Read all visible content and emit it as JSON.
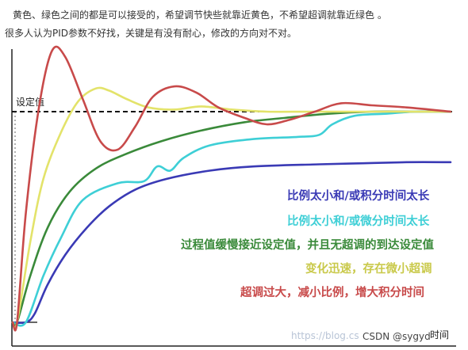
{
  "intro": {
    "line1": "黄色、绿色之间的都是可以接受的，希望调节快些就靠近黄色，不希望超调就靠近绿色 。",
    "line2": "很多人认为PID参数不好找，关键是有没有耐心，修改的方向对不对。"
  },
  "watermark": {
    "url": "https://blog.cs",
    "credit": "CSDN @sygyd"
  },
  "chart_data": {
    "type": "line",
    "setpoint_label": "设定值",
    "xlabel": "时间",
    "ylabel": "",
    "setpoint": 1.0,
    "x_unit": "fraction of time span",
    "series": [
      {
        "name": "比例太小和/或积分时间太长",
        "color": "#3a3ab5",
        "x": [
          0,
          0.03,
          0.05,
          0.08,
          0.12,
          0.17,
          0.22,
          0.28,
          0.35,
          0.45,
          0.55,
          0.7,
          0.8,
          0.9,
          1.0
        ],
        "y": [
          0,
          0,
          0.04,
          0.18,
          0.32,
          0.45,
          0.55,
          0.63,
          0.68,
          0.72,
          0.74,
          0.75,
          0.755,
          0.76,
          0.76
        ]
      },
      {
        "name": "比例太小和/或微分时间太长",
        "color": "#3ecfd6",
        "x": [
          0,
          0.03,
          0.07,
          0.11,
          0.16,
          0.24,
          0.3,
          0.33,
          0.36,
          0.39,
          0.45,
          0.55,
          0.65,
          0.7,
          0.73,
          0.78,
          0.85,
          0.92,
          1.0
        ],
        "y": [
          0,
          0,
          0.22,
          0.4,
          0.58,
          0.66,
          0.67,
          0.74,
          0.72,
          0.78,
          0.84,
          0.87,
          0.88,
          0.89,
          0.94,
          0.98,
          0.99,
          1.0,
          1.0
        ]
      },
      {
        "name": "过程值缓慢接近设定值，并且无超调的到达设定值",
        "color": "#3a8a3a",
        "x": [
          0,
          0.01,
          0.04,
          0.08,
          0.13,
          0.19,
          0.26,
          0.34,
          0.43,
          0.53,
          0.62,
          0.72,
          0.82,
          0.92,
          1.0
        ],
        "y": [
          0,
          0,
          0.22,
          0.45,
          0.62,
          0.73,
          0.8,
          0.86,
          0.91,
          0.95,
          0.97,
          0.99,
          1.0,
          1.0,
          1.0
        ]
      },
      {
        "name": "变化迅速，存在微小超调",
        "color": "#e3e36a",
        "x": [
          0,
          0.01,
          0.04,
          0.07,
          0.11,
          0.15,
          0.19,
          0.22,
          0.26,
          0.31,
          0.37,
          0.43,
          0.5,
          0.58,
          0.68,
          0.8,
          1.0
        ],
        "y": [
          0,
          0,
          0.38,
          0.68,
          0.9,
          1.05,
          1.11,
          1.1,
          1.06,
          1.02,
          1.01,
          1.025,
          1.01,
          1.0,
          1.0,
          1.0,
          1.0
        ]
      },
      {
        "name": "超调过大，减小比例，增大积分时间",
        "color": "#c84a4a",
        "x": [
          0,
          0.01,
          0.03,
          0.06,
          0.09,
          0.12,
          0.16,
          0.2,
          0.24,
          0.28,
          0.32,
          0.37,
          0.42,
          0.47,
          0.53,
          0.58,
          0.63,
          0.69,
          0.75,
          0.82,
          0.9,
          1.0
        ],
        "y": [
          0,
          0,
          0.52,
          1.02,
          1.29,
          1.26,
          1.06,
          0.86,
          0.82,
          0.93,
          1.07,
          1.12,
          1.09,
          1.02,
          0.97,
          0.94,
          0.96,
          1.0,
          1.04,
          1.03,
          1.02,
          1.0
        ]
      }
    ]
  }
}
